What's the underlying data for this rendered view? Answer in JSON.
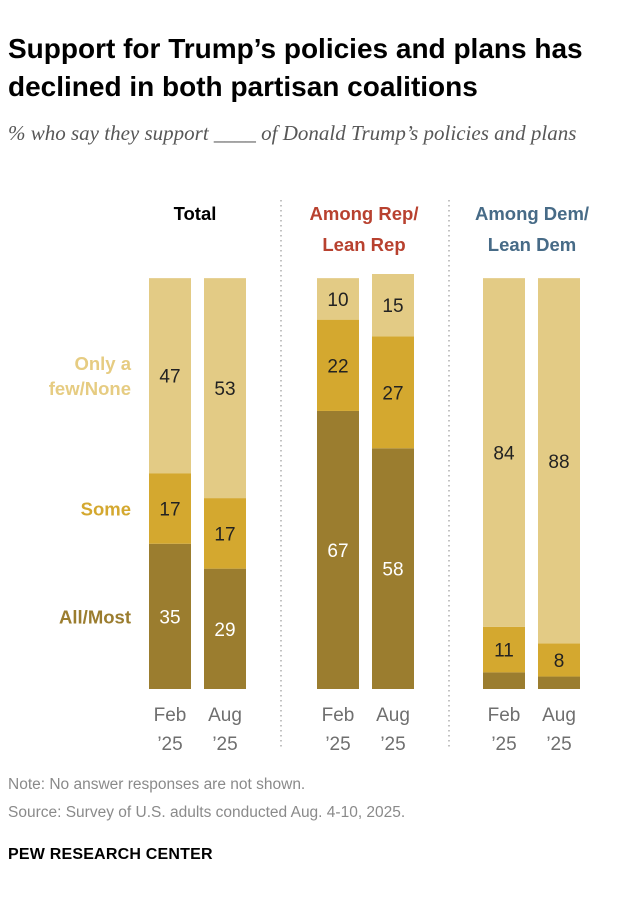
{
  "title": "Support for Trump’s policies and plans has declined in both partisan coalitions",
  "subtitle": "% who say they support ____ of Donald Trump’s policies and plans",
  "note": "Note: No answer responses are not shown.",
  "source": "Source: Survey of U.S. adults conducted Aug. 4-10, 2025.",
  "brand": "PEW RESEARCH CENTER",
  "colors": {
    "all_most": "#9b7d2f",
    "some": "#d4a82f",
    "few_none": "#e3cb85",
    "rep_heading": "#b8412f",
    "dem_heading": "#476b87",
    "label_all_most": "#9b7d2f",
    "label_some": "#d4a82f",
    "label_few_none": "#e6cc82"
  },
  "chart_data": {
    "type": "bar",
    "stacked": true,
    "orientation": "vertical",
    "ylim": [
      0,
      100
    ],
    "categories": [
      "Feb ’25",
      "Aug ’25"
    ],
    "category_lines": [
      [
        "Feb",
        "’25"
      ],
      [
        "Aug",
        "’25"
      ]
    ],
    "series_names": [
      "All/Most",
      "Some",
      "Only a few/None"
    ],
    "series_label_lines": [
      [
        "All/Most"
      ],
      [
        "Some"
      ],
      [
        "Only a",
        "few/None"
      ]
    ],
    "groups": [
      {
        "heading": [
          "Total"
        ],
        "series": [
          {
            "name": "All/Most",
            "values": [
              35,
              29
            ]
          },
          {
            "name": "Some",
            "values": [
              17,
              17
            ]
          },
          {
            "name": "Only a few/None",
            "values": [
              47,
              53
            ]
          }
        ]
      },
      {
        "heading": [
          "Among Rep/",
          "Lean Rep"
        ],
        "series": [
          {
            "name": "All/Most",
            "values": [
              67,
              58
            ]
          },
          {
            "name": "Some",
            "values": [
              22,
              27
            ]
          },
          {
            "name": "Only a few/None",
            "values": [
              10,
              15
            ]
          }
        ]
      },
      {
        "heading": [
          "Among Dem/",
          "Lean Dem"
        ],
        "series": [
          {
            "name": "All/Most",
            "values": [
              4,
              3
            ]
          },
          {
            "name": "Some",
            "values": [
              11,
              8
            ]
          },
          {
            "name": "Only a few/None",
            "values": [
              84,
              88
            ]
          }
        ]
      }
    ]
  }
}
